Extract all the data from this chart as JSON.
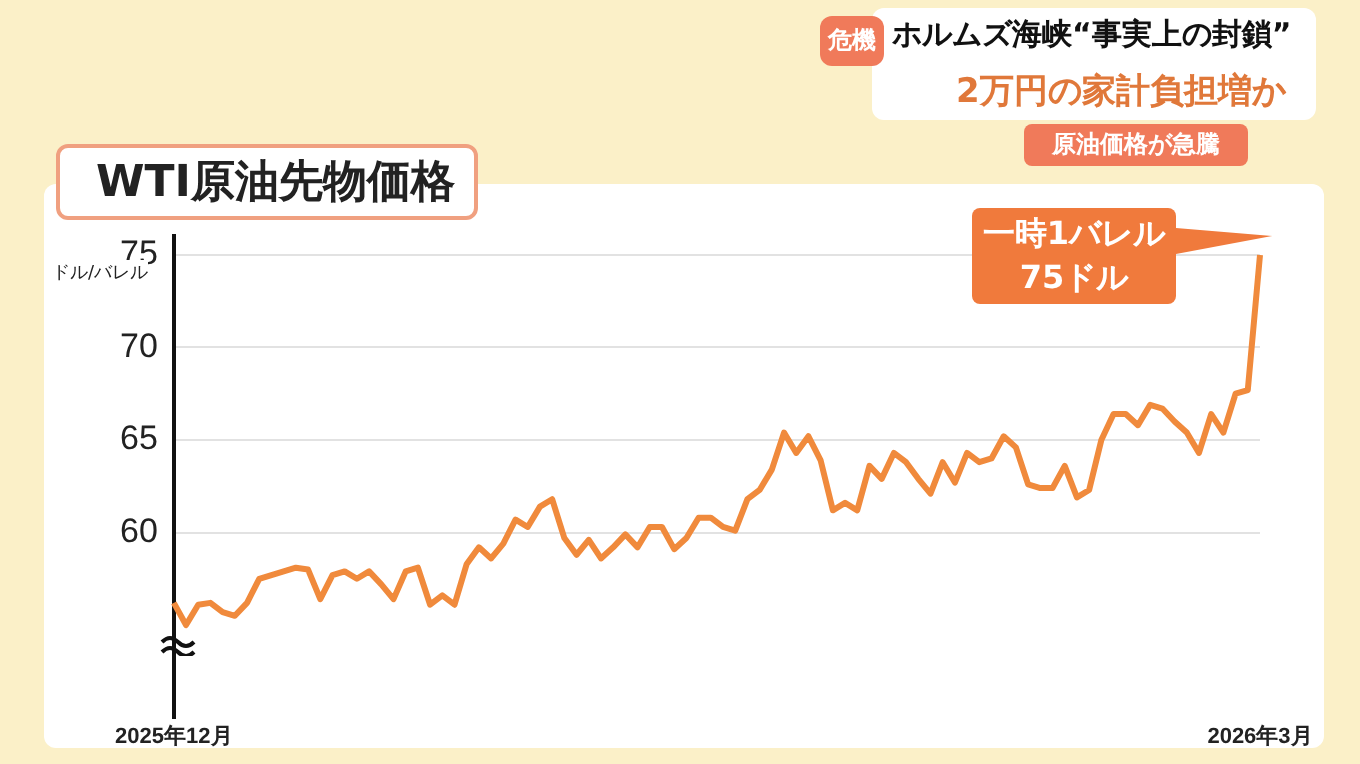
{
  "chart_data": {
    "type": "line",
    "title": "WTI原油先物価格",
    "ylabel": "ドル/バレル",
    "annotations": [
      "危機",
      "ホルムズ海峡“事実上の封鎖”",
      "2万円の家計負担増か",
      "原油価格が急騰",
      "一時1バレル\n75ドル"
    ],
    "categories": [
      "2025年12月",
      null,
      null,
      null,
      null,
      null,
      null,
      null,
      null,
      null,
      null,
      null,
      null,
      null,
      null,
      null,
      null,
      null,
      null,
      null,
      null,
      null,
      null,
      null,
      null,
      null,
      null,
      null,
      null,
      null,
      null,
      null,
      null,
      null,
      null,
      null,
      null,
      null,
      null,
      null,
      null,
      null,
      null,
      null,
      null,
      null,
      null,
      null,
      null,
      null,
      null,
      null,
      null,
      null,
      null,
      null,
      null,
      null,
      null,
      null,
      null,
      null,
      null,
      null,
      null,
      null,
      null,
      null,
      null,
      null,
      null,
      null,
      null,
      null,
      null,
      null,
      null,
      null,
      null,
      null,
      null,
      null,
      null,
      null,
      null,
      null,
      null,
      null,
      null,
      "2026年3月"
    ],
    "series": [
      {
        "color": "#f08a3c",
        "values": [
          56.2,
          55.0,
          56.1,
          56.2,
          55.7,
          55.5,
          56.2,
          57.5,
          57.7,
          57.9,
          58.1,
          58.0,
          56.4,
          57.7,
          57.9,
          57.5,
          57.9,
          57.2,
          56.4,
          57.9,
          58.1,
          56.1,
          56.6,
          56.1,
          58.3,
          59.2,
          58.6,
          59.4,
          60.7,
          60.3,
          61.4,
          61.8,
          59.7,
          58.8,
          59.6,
          58.6,
          59.2,
          59.9,
          59.2,
          60.3,
          60.3,
          59.1,
          59.7,
          60.8,
          60.8,
          60.3,
          60.1,
          61.8,
          62.3,
          63.4,
          65.4,
          64.3,
          65.2,
          63.9,
          61.2,
          61.6,
          61.2,
          63.6,
          62.9,
          64.3,
          63.8,
          62.9,
          62.1,
          63.8,
          62.7,
          64.3,
          63.8,
          64.0,
          65.2,
          64.6,
          62.6,
          62.4,
          62.4,
          63.6,
          61.9,
          62.3,
          65.0,
          66.4,
          66.4,
          65.8,
          66.9,
          66.7,
          66.0,
          65.4,
          64.3,
          66.4,
          65.4,
          67.5,
          67.7,
          75.0
        ]
      }
    ],
    "ylim": [
      50,
      76
    ],
    "yticks": [
      60,
      65,
      70,
      75
    ],
    "grid": "y",
    "legend": false,
    "marker": "none"
  }
}
